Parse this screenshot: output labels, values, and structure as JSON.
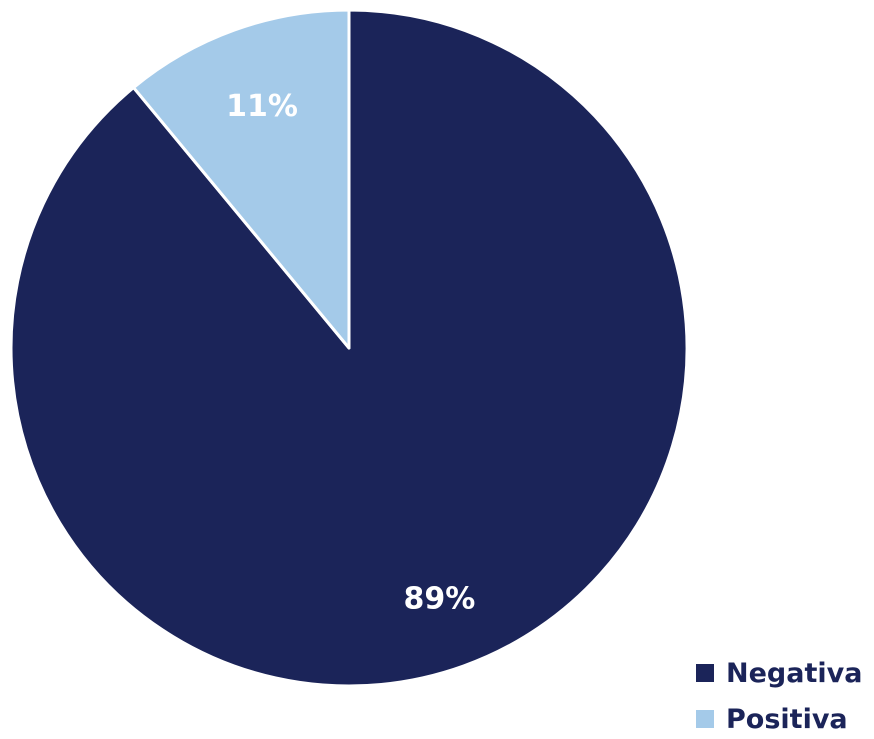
{
  "chart_data": {
    "type": "pie",
    "categories": [
      "Negativa",
      "Positiva"
    ],
    "values": [
      89,
      11
    ],
    "value_labels": [
      "89%",
      "11%"
    ],
    "colors": [
      "#1b2459",
      "#a4cae9"
    ],
    "title": "",
    "legend_position": "bottom-right",
    "start_angle_direction": "clockwise from top"
  }
}
